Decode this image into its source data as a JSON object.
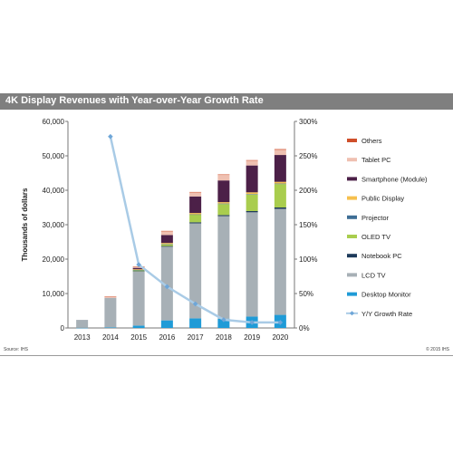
{
  "header": {
    "title": "4K Display Revenues with Year-over-Year Growth Rate"
  },
  "footer": {
    "source": "Source: IHS",
    "copyright": "© 2015 IHS"
  },
  "colors": {
    "title_bar": "#7f7f7f",
    "growth_line": "#a9cbe6",
    "growth_marker": "#6ea6d8"
  },
  "chart_data": {
    "type": "bar",
    "stacked": true,
    "title": "4K Display Revenues with Year-over-Year Growth Rate",
    "xlabel": "",
    "ylabel": "Thousands of dollars",
    "y2label": "",
    "ylim": [
      0,
      60000
    ],
    "y2lim": [
      0,
      300
    ],
    "yticks": [
      "0",
      "10,000",
      "20,000",
      "30,000",
      "40,000",
      "50,000",
      "60,000"
    ],
    "y2ticks": [
      "0%",
      "50%",
      "100%",
      "150%",
      "200%",
      "250%",
      "300%"
    ],
    "grid": false,
    "legend_position": "right",
    "categories": [
      "2013",
      "2014",
      "2015",
      "2016",
      "2017",
      "2018",
      "2019",
      "2020"
    ],
    "series": [
      {
        "name": "Desktop Monitor",
        "color": "#1f9bd7",
        "values": [
          50,
          150,
          700,
          2200,
          2800,
          2700,
          3300,
          3800
        ]
      },
      {
        "name": "LCD TV",
        "color": "#a7b0b6",
        "values": [
          2300,
          8600,
          15700,
          21400,
          27600,
          29800,
          30300,
          30800
        ]
      },
      {
        "name": "Notebook PC",
        "color": "#1d3a5a",
        "values": [
          0,
          0,
          100,
          200,
          300,
          300,
          350,
          400
        ]
      },
      {
        "name": "OLED TV",
        "color": "#a9cd4e",
        "values": [
          0,
          0,
          300,
          500,
          2200,
          3200,
          4800,
          6800
        ]
      },
      {
        "name": "Projector",
        "color": "#3e6e95",
        "values": [
          0,
          0,
          50,
          100,
          100,
          150,
          150,
          150
        ]
      },
      {
        "name": "Public Display",
        "color": "#f6c04e",
        "values": [
          0,
          0,
          200,
          300,
          400,
          400,
          500,
          500
        ]
      },
      {
        "name": "Smartphone (Module)",
        "color": "#4c2048",
        "values": [
          0,
          0,
          400,
          2300,
          4800,
          6300,
          7800,
          7800
        ]
      },
      {
        "name": "Tablet PC",
        "color": "#efc0b1",
        "values": [
          0,
          300,
          300,
          1100,
          1200,
          1600,
          1400,
          1500
        ]
      },
      {
        "name": "Others",
        "color": "#cf4f2a",
        "values": [
          0,
          100,
          100,
          100,
          100,
          150,
          150,
          200
        ]
      }
    ],
    "line_series": {
      "name": "Y/Y Growth Rate",
      "axis": "secondary",
      "categories": [
        "2014",
        "2015",
        "2016",
        "2017",
        "2018",
        "2019",
        "2020"
      ],
      "values": [
        278,
        92,
        60,
        35,
        12,
        8,
        8
      ]
    }
  }
}
